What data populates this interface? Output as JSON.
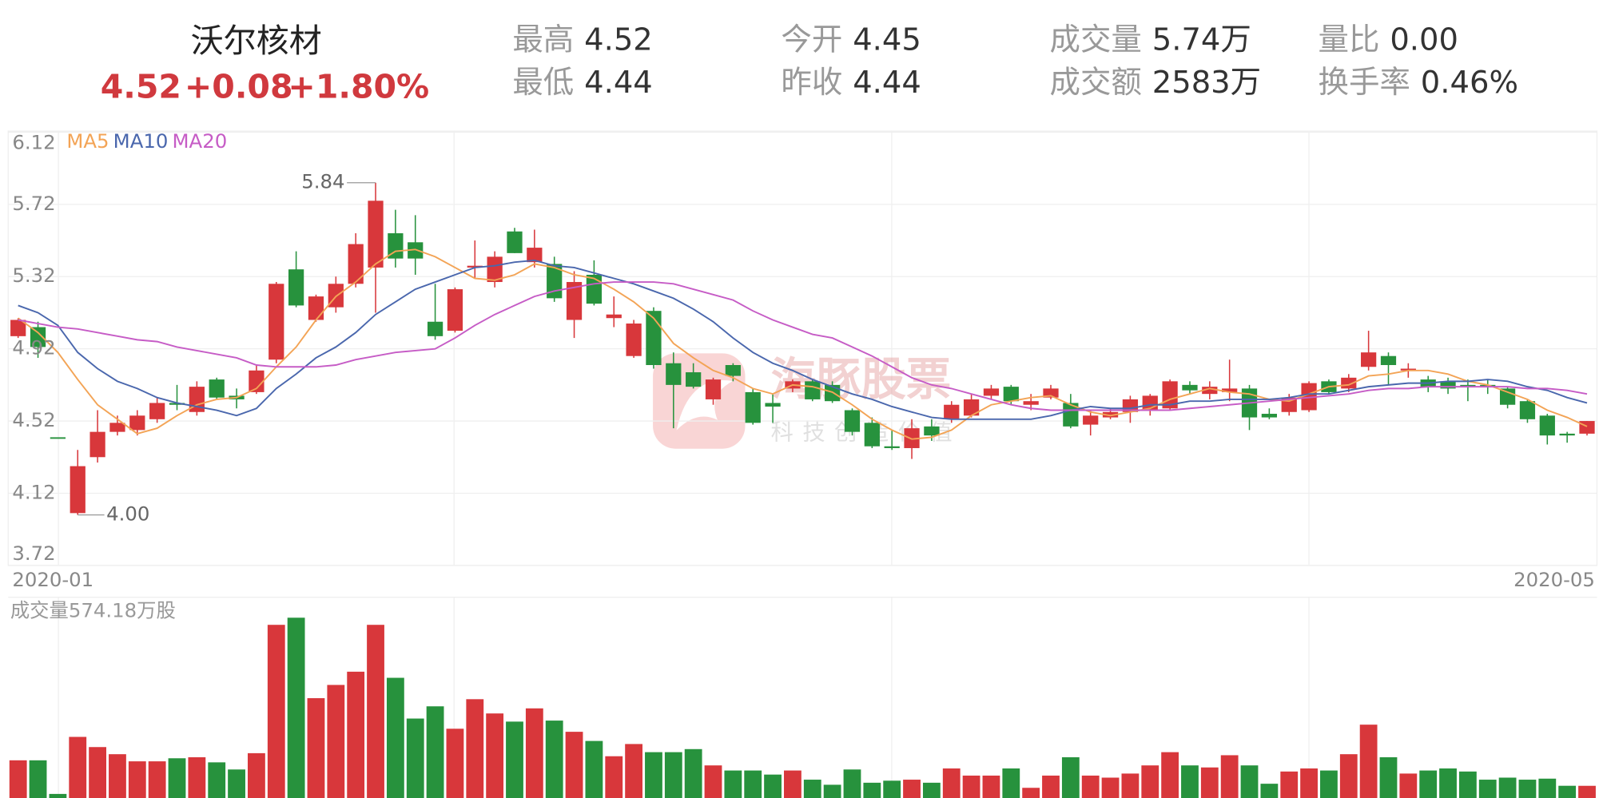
{
  "header": {
    "name": "沃尔核材",
    "price": "4.52",
    "change": "+0.08",
    "change_pct": "+1.80%",
    "stats": [
      {
        "label": "最高",
        "value": "4.52"
      },
      {
        "label": "最低",
        "value": "4.44"
      },
      {
        "label": "今开",
        "value": "4.45"
      },
      {
        "label": "昨收",
        "value": "4.44"
      },
      {
        "label": "成交量",
        "value": "5.74万"
      },
      {
        "label": "成交额",
        "value": "2583万"
      },
      {
        "label": "量比",
        "value": "0.00"
      },
      {
        "label": "换手率",
        "value": "0.46%"
      }
    ]
  },
  "watermark": {
    "title": "海豚股票",
    "slogan": "科技创造价值"
  },
  "chart_data": [
    {
      "type": "candlestick",
      "categories": [
        "2020-01",
        null,
        null,
        null,
        null,
        null,
        null,
        null,
        null,
        null,
        null,
        null,
        null,
        null,
        null,
        null,
        null,
        null,
        null,
        null,
        null,
        null,
        null,
        null,
        null,
        null,
        null,
        null,
        null,
        null,
        null,
        null,
        null,
        null,
        null,
        null,
        null,
        null,
        null,
        null,
        null,
        null,
        null,
        null,
        null,
        null,
        null,
        null,
        null,
        null,
        null,
        null,
        null,
        null,
        null,
        null,
        null,
        null,
        null,
        null,
        null,
        null,
        null,
        null,
        null,
        null,
        null,
        null,
        null,
        null,
        null,
        null,
        null,
        null,
        null,
        null,
        null,
        null,
        null,
        "2020-05"
      ],
      "open": [
        4.99,
        5.04,
        4.43,
        4.01,
        4.32,
        4.46,
        4.47,
        4.53,
        4.62,
        4.57,
        4.75,
        4.66,
        4.68,
        4.86,
        5.36,
        5.08,
        5.15,
        5.28,
        5.37,
        5.56,
        5.51,
        5.07,
        5.02,
        5.37,
        5.29,
        5.57,
        5.4,
        5.39,
        5.08,
        5.33,
        5.09,
        4.88,
        5.13,
        4.84,
        4.79,
        4.64,
        4.83,
        4.68,
        4.62,
        4.7,
        4.74,
        4.72,
        4.58,
        4.51,
        4.38,
        4.37,
        4.49,
        4.53,
        4.55,
        4.66,
        4.71,
        4.61,
        4.65,
        4.62,
        4.5,
        4.54,
        4.57,
        4.58,
        4.59,
        4.72,
        4.67,
        4.68,
        4.7,
        4.56,
        4.57,
        4.58,
        4.74,
        4.7,
        4.82,
        4.88,
        4.8,
        4.75,
        4.74,
        4.72,
        4.72,
        4.7,
        4.63,
        4.55,
        4.45,
        4.45
      ],
      "high": [
        5.09,
        5.07,
        4.43,
        4.36,
        4.58,
        4.55,
        4.58,
        4.65,
        4.72,
        4.74,
        4.76,
        4.7,
        4.83,
        5.29,
        5.46,
        5.22,
        5.32,
        5.56,
        5.84,
        5.69,
        5.66,
        5.28,
        5.26,
        5.52,
        5.46,
        5.59,
        5.58,
        5.43,
        5.35,
        5.41,
        5.21,
        5.08,
        5.15,
        4.9,
        4.84,
        4.76,
        4.84,
        4.7,
        4.67,
        4.75,
        4.75,
        4.74,
        4.59,
        4.54,
        4.47,
        4.53,
        4.53,
        4.63,
        4.67,
        4.72,
        4.72,
        4.67,
        4.72,
        4.67,
        4.58,
        4.59,
        4.66,
        4.67,
        4.75,
        4.74,
        4.74,
        4.86,
        4.72,
        4.59,
        4.67,
        4.74,
        4.75,
        4.78,
        5.02,
        4.9,
        4.84,
        4.77,
        4.76,
        4.75,
        4.75,
        4.71,
        4.64,
        4.56,
        4.46,
        4.52
      ],
      "low": [
        4.98,
        4.87,
        4.43,
        4.0,
        4.29,
        4.44,
        4.44,
        4.51,
        4.58,
        4.55,
        4.64,
        4.59,
        4.67,
        4.84,
        5.15,
        5.07,
        5.12,
        5.26,
        5.12,
        5.37,
        5.33,
        4.97,
        5.01,
        5.31,
        5.26,
        5.45,
        5.37,
        5.18,
        4.98,
        5.16,
        5.04,
        4.87,
        4.81,
        4.48,
        4.7,
        4.61,
        4.74,
        4.5,
        4.51,
        4.68,
        4.63,
        4.62,
        4.44,
        4.37,
        4.36,
        4.31,
        4.41,
        4.51,
        4.54,
        4.64,
        4.61,
        4.58,
        4.64,
        4.48,
        4.44,
        4.53,
        4.51,
        4.55,
        4.58,
        4.67,
        4.64,
        4.63,
        4.47,
        4.53,
        4.55,
        4.57,
        4.67,
        4.68,
        4.8,
        4.72,
        4.76,
        4.68,
        4.67,
        4.63,
        4.67,
        4.59,
        4.51,
        4.39,
        4.4,
        4.44
      ],
      "close": [
        5.08,
        4.93,
        4.43,
        4.27,
        4.46,
        4.51,
        4.55,
        4.62,
        4.61,
        4.71,
        4.65,
        4.64,
        4.8,
        5.28,
        5.16,
        5.21,
        5.28,
        5.5,
        5.74,
        5.42,
        5.42,
        4.99,
        5.25,
        5.38,
        5.43,
        5.45,
        5.48,
        5.2,
        5.29,
        5.17,
        5.11,
        5.06,
        4.83,
        4.72,
        4.71,
        4.75,
        4.77,
        4.51,
        4.6,
        4.74,
        4.64,
        4.63,
        4.46,
        4.38,
        4.37,
        4.48,
        4.44,
        4.61,
        4.64,
        4.7,
        4.63,
        4.63,
        4.7,
        4.49,
        4.55,
        4.57,
        4.64,
        4.66,
        4.74,
        4.69,
        4.71,
        4.7,
        4.54,
        4.54,
        4.65,
        4.73,
        4.68,
        4.76,
        4.9,
        4.83,
        4.81,
        4.71,
        4.7,
        4.71,
        4.71,
        4.61,
        4.53,
        4.44,
        4.44,
        4.52
      ],
      "up_color": "#d8373b",
      "down_color": "#27923d",
      "high_label": "5.84",
      "low_label": "4.00",
      "ylim": [
        3.72,
        6.12
      ],
      "yticks": [
        6.12,
        5.72,
        5.32,
        4.92,
        4.52,
        4.12,
        3.72
      ],
      "grid": true,
      "series": [
        {
          "name": "MA5",
          "color": "#f3a456",
          "values": [
            5.09,
            5.01,
            4.9,
            4.75,
            4.61,
            4.53,
            4.45,
            4.48,
            4.55,
            4.61,
            4.64,
            4.65,
            4.7,
            4.82,
            4.93,
            5.08,
            5.21,
            5.29,
            5.39,
            5.46,
            5.47,
            5.43,
            5.37,
            5.31,
            5.3,
            5.33,
            5.39,
            5.37,
            5.33,
            5.31,
            5.25,
            5.18,
            5.09,
            4.95,
            4.87,
            4.8,
            4.76,
            4.7,
            4.67,
            4.72,
            4.71,
            4.68,
            4.61,
            4.53,
            4.47,
            4.42,
            4.43,
            4.47,
            4.55,
            4.61,
            4.63,
            4.65,
            4.66,
            4.61,
            4.57,
            4.55,
            4.57,
            4.59,
            4.64,
            4.67,
            4.7,
            4.68,
            4.67,
            4.64,
            4.63,
            4.67,
            4.71,
            4.72,
            4.77,
            4.78,
            4.8,
            4.8,
            4.78,
            4.74,
            4.72,
            4.68,
            4.64,
            4.58,
            4.54,
            4.49
          ]
        },
        {
          "name": "MA10",
          "color": "#4a67ad",
          "values": [
            5.16,
            5.12,
            5.05,
            4.9,
            4.81,
            4.74,
            4.7,
            4.65,
            4.62,
            4.6,
            4.58,
            4.55,
            4.59,
            4.7,
            4.78,
            4.87,
            4.93,
            5.01,
            5.11,
            5.18,
            5.25,
            5.29,
            5.33,
            5.37,
            5.38,
            5.4,
            5.41,
            5.38,
            5.37,
            5.34,
            5.31,
            5.28,
            5.24,
            5.2,
            5.14,
            5.07,
            4.98,
            4.9,
            4.84,
            4.8,
            4.75,
            4.71,
            4.67,
            4.64,
            4.6,
            4.57,
            4.54,
            4.53,
            4.53,
            4.53,
            4.53,
            4.53,
            4.55,
            4.58,
            4.6,
            4.59,
            4.59,
            4.61,
            4.61,
            4.63,
            4.63,
            4.64,
            4.64,
            4.64,
            4.65,
            4.67,
            4.67,
            4.69,
            4.71,
            4.72,
            4.73,
            4.73,
            4.74,
            4.74,
            4.75,
            4.74,
            4.71,
            4.69,
            4.65,
            4.62
          ]
        },
        {
          "name": "MA20",
          "color": "#c65cc6",
          "values": [
            5.08,
            5.06,
            5.04,
            5.03,
            5.01,
            4.99,
            4.97,
            4.96,
            4.93,
            4.91,
            4.89,
            4.87,
            4.83,
            4.82,
            4.82,
            4.82,
            4.83,
            4.86,
            4.88,
            4.9,
            4.91,
            4.92,
            4.98,
            5.05,
            5.11,
            5.16,
            5.21,
            5.24,
            5.26,
            5.28,
            5.29,
            5.29,
            5.29,
            5.28,
            5.25,
            5.22,
            5.19,
            5.13,
            5.08,
            5.04,
            5.0,
            4.98,
            4.93,
            4.88,
            4.82,
            4.76,
            4.72,
            4.7,
            4.67,
            4.64,
            4.61,
            4.59,
            4.58,
            4.58,
            4.58,
            4.58,
            4.58,
            4.58,
            4.58,
            4.59,
            4.6,
            4.61,
            4.62,
            4.63,
            4.64,
            4.65,
            4.66,
            4.67,
            4.69,
            4.7,
            4.7,
            4.71,
            4.71,
            4.71,
            4.71,
            4.71,
            4.7,
            4.7,
            4.69,
            4.67
          ]
        }
      ]
    },
    {
      "type": "bar",
      "title": "成交量574.18万股",
      "up_color": "#d8373b",
      "down_color": "#27923d",
      "values": [
        1776,
        1776,
        192,
        2880,
        2400,
        2064,
        1728,
        1728,
        1872,
        1920,
        1680,
        1344,
        2112,
        8160,
        8496,
        4704,
        5328,
        5952,
        8160,
        5664,
        3744,
        4320,
        3264,
        4656,
        3984,
        3600,
        4224,
        3648,
        3120,
        2688,
        1968,
        2544,
        2160,
        2160,
        2304,
        1536,
        1296,
        1296,
        1104,
        1296,
        864,
        624,
        1344,
        720,
        816,
        864,
        720,
        1392,
        1056,
        1056,
        1392,
        480,
        1056,
        1920,
        1056,
        960,
        1152,
        1536,
        2160,
        1536,
        1440,
        2016,
        1536,
        672,
        1248,
        1392,
        1296,
        2064,
        3456,
        1920,
        1152,
        1296,
        1392,
        1248,
        864,
        960,
        864,
        912,
        576,
        574.18
      ]
    }
  ]
}
